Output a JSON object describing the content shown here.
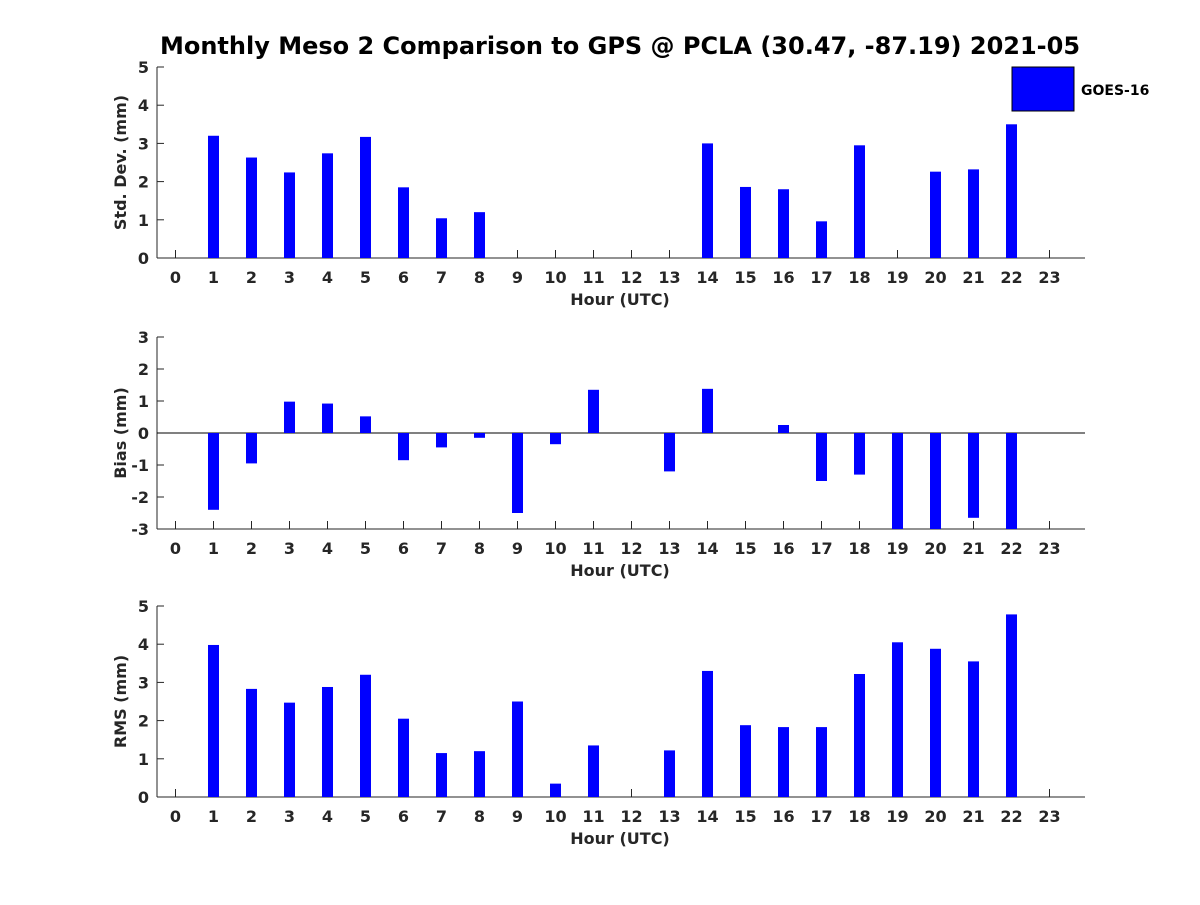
{
  "chart_data": [
    {
      "type": "bar",
      "title": "Monthly Meso 2 Comparison to GPS @ PCLA (30.47, -87.19) 2021-05",
      "xlabel": "Hour (UTC)",
      "ylabel": "Std. Dev. (mm)",
      "ylim": [
        0,
        5
      ],
      "yticks": [
        0,
        1,
        2,
        3,
        4,
        5
      ],
      "categories": [
        "0",
        "1",
        "2",
        "3",
        "4",
        "5",
        "6",
        "7",
        "8",
        "9",
        "10",
        "11",
        "12",
        "13",
        "14",
        "15",
        "16",
        "17",
        "18",
        "19",
        "20",
        "21",
        "22",
        "23"
      ],
      "series": [
        {
          "name": "GOES-16",
          "color": "#0000ff",
          "values": [
            null,
            3.2,
            2.63,
            2.24,
            2.74,
            3.17,
            1.85,
            1.04,
            1.2,
            null,
            null,
            null,
            null,
            null,
            3.0,
            1.86,
            1.8,
            0.96,
            2.95,
            null,
            2.26,
            2.32,
            3.5,
            null
          ]
        }
      ],
      "legend": {
        "position": "top-right",
        "entries": [
          "GOES-16"
        ]
      },
      "grid": false
    },
    {
      "type": "bar",
      "xlabel": "Hour (UTC)",
      "ylabel": "Bias (mm)",
      "ylim": [
        -3,
        3
      ],
      "yticks": [
        -3,
        -2,
        -1,
        0,
        1,
        2,
        3
      ],
      "zero_line": true,
      "categories": [
        "0",
        "1",
        "2",
        "3",
        "4",
        "5",
        "6",
        "7",
        "8",
        "9",
        "10",
        "11",
        "12",
        "13",
        "14",
        "15",
        "16",
        "17",
        "18",
        "19",
        "20",
        "21",
        "22",
        "23"
      ],
      "series": [
        {
          "name": "GOES-16",
          "color": "#0000ff",
          "values": [
            null,
            -2.4,
            -0.95,
            0.98,
            0.92,
            0.52,
            -0.85,
            -0.45,
            -0.15,
            -2.5,
            -0.35,
            1.35,
            null,
            -1.2,
            1.38,
            null,
            0.25,
            -1.5,
            -1.3,
            -3.0,
            -3.0,
            -2.65,
            -3.0,
            null
          ]
        }
      ],
      "grid": false
    },
    {
      "type": "bar",
      "xlabel": "Hour (UTC)",
      "ylabel": "RMS (mm)",
      "ylim": [
        0,
        5
      ],
      "yticks": [
        0,
        1,
        2,
        3,
        4,
        5
      ],
      "categories": [
        "0",
        "1",
        "2",
        "3",
        "4",
        "5",
        "6",
        "7",
        "8",
        "9",
        "10",
        "11",
        "12",
        "13",
        "14",
        "15",
        "16",
        "17",
        "18",
        "19",
        "20",
        "21",
        "22",
        "23"
      ],
      "series": [
        {
          "name": "GOES-16",
          "color": "#0000ff",
          "values": [
            null,
            3.98,
            2.83,
            2.47,
            2.88,
            3.2,
            2.05,
            1.15,
            1.2,
            2.5,
            0.35,
            1.35,
            null,
            1.22,
            3.3,
            1.88,
            1.83,
            1.83,
            3.22,
            4.05,
            3.88,
            3.55,
            4.78,
            null
          ]
        }
      ],
      "grid": false
    }
  ]
}
